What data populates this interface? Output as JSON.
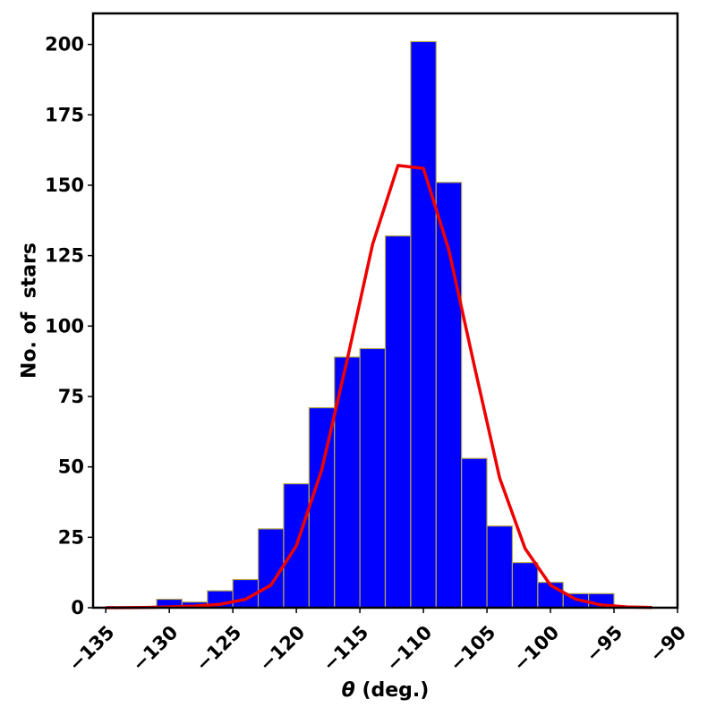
{
  "chart_data": {
    "type": "bar",
    "xlabel_symbol": "θ",
    "xlabel_rest": " (deg.)",
    "ylabel": "No. of  stars",
    "xlim": [
      -136,
      -90
    ],
    "ylim": [
      0,
      211
    ],
    "x_ticks": [
      -135,
      -130,
      -125,
      -120,
      -115,
      -110,
      -105,
      -100,
      -95,
      -90
    ],
    "x_tick_labels": [
      "−135",
      "−130",
      "−125",
      "−120",
      "−115",
      "−110",
      "−105",
      "−100",
      "−95",
      "−90"
    ],
    "y_ticks": [
      0,
      25,
      50,
      75,
      100,
      125,
      150,
      175,
      200
    ],
    "y_tick_labels": [
      "0",
      "25",
      "50",
      "75",
      "100",
      "125",
      "150",
      "175",
      "200"
    ],
    "grid": false,
    "bar_color": "#0000ff",
    "bar_edge_color": "#b8a84a",
    "bins": [
      {
        "x0": -131,
        "x1": -129,
        "count": 3
      },
      {
        "x0": -129,
        "x1": -127,
        "count": 2
      },
      {
        "x0": -127,
        "x1": -125,
        "count": 6
      },
      {
        "x0": -125,
        "x1": -123,
        "count": 10
      },
      {
        "x0": -123,
        "x1": -121,
        "count": 28
      },
      {
        "x0": -121,
        "x1": -119,
        "count": 44
      },
      {
        "x0": -119,
        "x1": -117,
        "count": 71
      },
      {
        "x0": -117,
        "x1": -115,
        "count": 89
      },
      {
        "x0": -115,
        "x1": -113,
        "count": 92
      },
      {
        "x0": -113,
        "x1": -111,
        "count": 132
      },
      {
        "x0": -111,
        "x1": -109,
        "count": 201
      },
      {
        "x0": -109,
        "x1": -107,
        "count": 151
      },
      {
        "x0": -107,
        "x1": -105,
        "count": 53
      },
      {
        "x0": -105,
        "x1": -103,
        "count": 29
      },
      {
        "x0": -103,
        "x1": -101,
        "count": 16
      },
      {
        "x0": -101,
        "x1": -99,
        "count": 9
      },
      {
        "x0": -99,
        "x1": -97,
        "count": 5
      },
      {
        "x0": -97,
        "x1": -95,
        "count": 5
      }
    ],
    "fit_curve": {
      "color": "#ee0000",
      "x": [
        -135,
        -132,
        -130,
        -128,
        -126,
        -124,
        -122,
        -120,
        -118,
        -116,
        -114,
        -112,
        -110,
        -108,
        -106,
        -104,
        -102,
        -100,
        -98,
        -96,
        -94,
        -92
      ],
      "y": [
        0,
        0.1,
        0.3,
        0.6,
        1.2,
        3,
        8,
        22,
        49,
        88,
        129,
        157,
        156,
        127,
        86,
        46,
        21,
        8,
        3,
        1,
        0.3,
        0.1
      ]
    }
  }
}
